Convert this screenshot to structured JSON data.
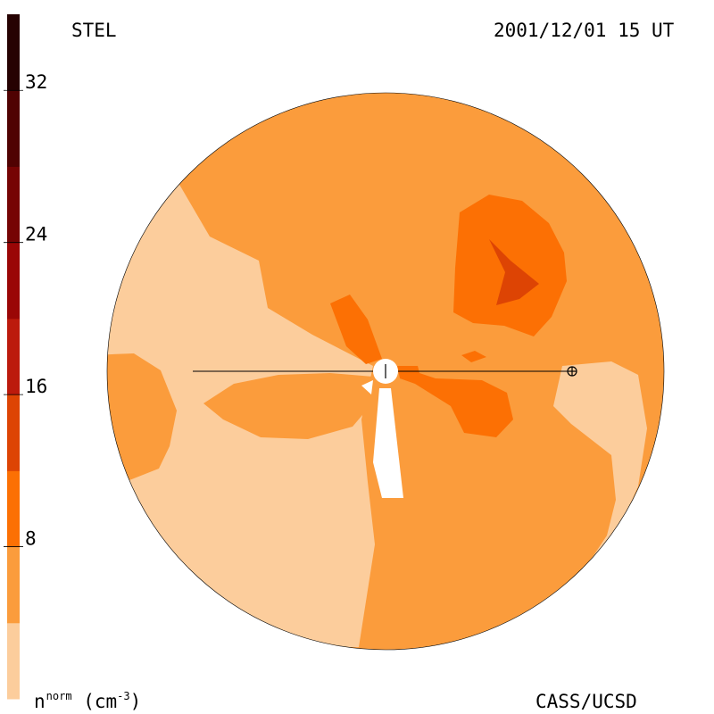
{
  "header": {
    "instrument": "STEL",
    "datetime": "2001/12/01 15 UT"
  },
  "footer": {
    "credit": "CASS/UCSD"
  },
  "colors": {
    "background": "#ffffff",
    "outline": "#000000",
    "sun": "#ffffff"
  },
  "chart_data": {
    "type": "heatmap",
    "title": "",
    "colorbar": {
      "label_main": "n",
      "label_sup": "norm",
      "label_unit": "(cm",
      "label_unit_sup": "-3",
      "label_unit_close": ")",
      "range": [
        0,
        36
      ],
      "ticks": [
        8,
        16,
        24,
        32
      ],
      "tick_labels": [
        "8",
        "16",
        "24",
        "32"
      ],
      "levels": [
        {
          "min": 0,
          "max": 4,
          "color": "#fccd9c"
        },
        {
          "min": 4,
          "max": 8,
          "color": "#fb9c3c"
        },
        {
          "min": 8,
          "max": 12,
          "color": "#fc7004"
        },
        {
          "min": 12,
          "max": 16,
          "color": "#dd4404"
        },
        {
          "min": 16,
          "max": 20,
          "color": "#bc1a0c"
        },
        {
          "min": 20,
          "max": 24,
          "color": "#9a0606"
        },
        {
          "min": 24,
          "max": 28,
          "color": "#760404"
        },
        {
          "min": 28,
          "max": 32,
          "color": "#500202"
        },
        {
          "min": 32,
          "max": 36,
          "color": "#260202"
        }
      ]
    },
    "disk": {
      "background_level": 1,
      "regions": [
        {
          "name": "left-low-density-region",
          "level": 0
        },
        {
          "name": "right-low-density-region",
          "level": 0
        },
        {
          "name": "left-moderate-patch",
          "level": 1
        },
        {
          "name": "west-moderate-tongue",
          "level": 1
        },
        {
          "name": "north-enhanced-region",
          "level": 2
        },
        {
          "name": "north-enhanced-core",
          "level": 3
        },
        {
          "name": "central-enhanced-lobe-upper",
          "level": 2
        },
        {
          "name": "central-enhanced-lobe-right",
          "level": 2
        },
        {
          "name": "small-enhanced-spot",
          "level": 2
        }
      ]
    }
  }
}
